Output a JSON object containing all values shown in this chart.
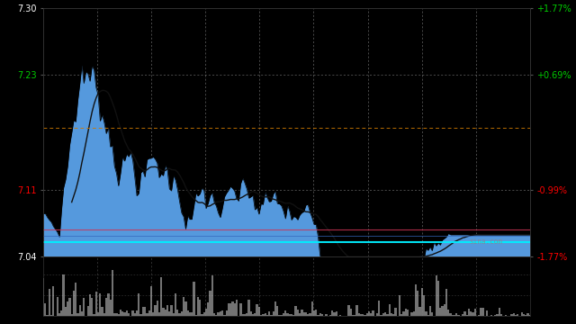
{
  "bg_color": "#000000",
  "main_bg": "#000000",
  "y_min": 7.04,
  "y_max": 7.3,
  "y_ticks_left": [
    7.04,
    7.11,
    7.23,
    7.3
  ],
  "y_ticks_right": [
    "-1.77%",
    "-0.99%",
    "+0.69%",
    "+1.77%"
  ],
  "y_ticks_right_colors": [
    "#ff0000",
    "#ff0000",
    "#00cc00",
    "#00cc00"
  ],
  "y_ticks_left_colors": [
    "#ffffff",
    "#ff0000",
    "#00cc00",
    "#ffffff"
  ],
  "ref_line_orange": 7.175,
  "ref_line_cyan": 7.055,
  "ref_line_pink": 7.068,
  "ref_line_blue2": 7.062,
  "fill_color": "#5599dd",
  "grid_color": "#ffffff",
  "grid_alpha": 0.4,
  "watermark": "sina.com",
  "watermark_color": "#888888",
  "n_points": 240,
  "volume_color": "#888888",
  "hline_orange_color": "#cc7700",
  "cyan_color": "#00eeff",
  "pink_color": "#cc3355",
  "blue2_color": "#3366bb"
}
